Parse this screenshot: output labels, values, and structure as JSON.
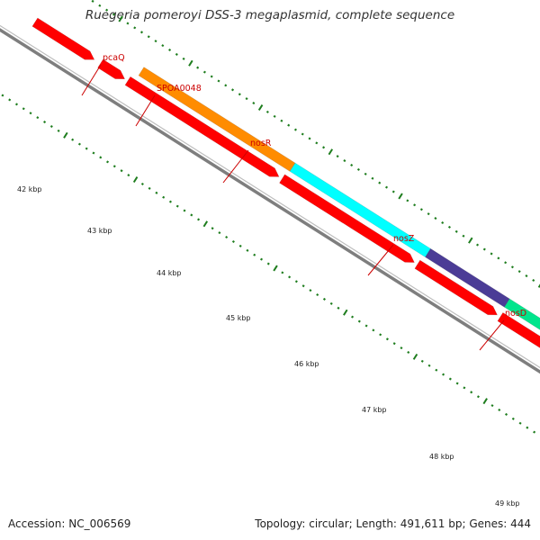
{
  "title": "Ruegeria pomeroyi DSS-3 megaplasmid, complete sequence",
  "footer": {
    "accession": "Accession: NC_006569",
    "summary": "Topology: circular; Length: 491,611 bp; Genes: 444"
  },
  "scale": {
    "tick_labels": [
      "42 kbp",
      "43 kbp",
      "44 kbp",
      "45 kbp",
      "46 kbp",
      "47 kbp",
      "48 kbp",
      "49 kbp"
    ]
  },
  "genes": [
    {
      "label": "pcaQ"
    },
    {
      "label": "SPOA0048"
    },
    {
      "label": "nosR"
    },
    {
      "label": "nosZ"
    },
    {
      "label": "nosD"
    }
  ],
  "colors": {
    "backbone": "#8c8c8c",
    "tick": "#1e7d1e",
    "gene_red": "#ff0000",
    "nosR": "#ff8c00",
    "nosZ": "#00ffff",
    "nosD": "#4b3c96",
    "teal_gene": "#00e58c",
    "blue_gene": "#0000ff",
    "label": "#cc0000"
  }
}
